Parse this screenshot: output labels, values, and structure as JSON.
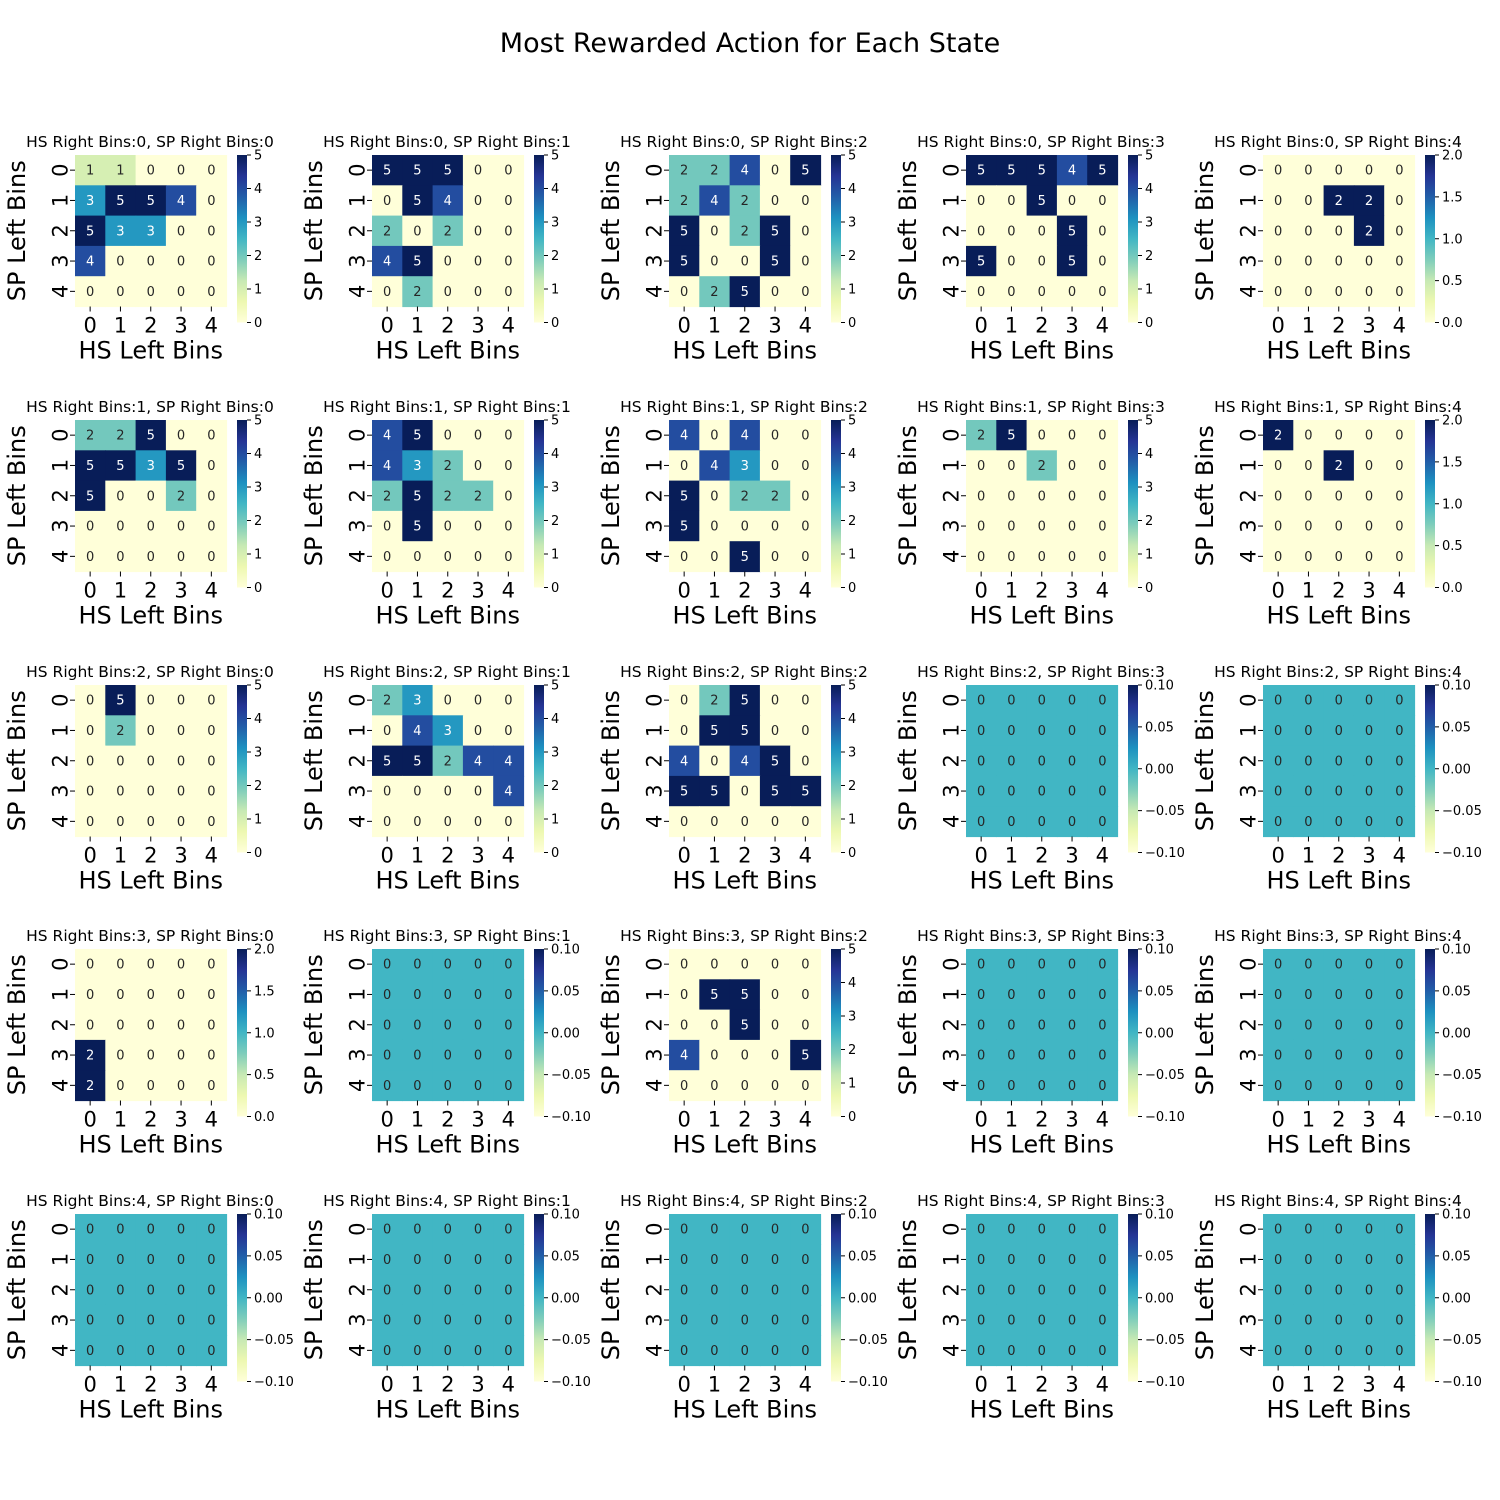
{
  "figure": {
    "title": "Most Rewarded Action for Each State"
  },
  "colormap": {
    "name": "YlGnBu",
    "stops": [
      "#ffffd9",
      "#edf8b1",
      "#c7e9b4",
      "#7fcdbb",
      "#41b6c4",
      "#1d91c0",
      "#225ea8",
      "#253494",
      "#081d58"
    ]
  },
  "chart_data": {
    "type": "heatmap",
    "title": "Most Rewarded Action for Each State",
    "xlabel": "HS Left Bins",
    "ylabel": "SP Left Bins",
    "x_ticks": [
      "0",
      "1",
      "2",
      "3",
      "4"
    ],
    "y_ticks": [
      "0",
      "1",
      "2",
      "3",
      "4"
    ],
    "grid": false,
    "legend": "colorbar-right-of-each-panel",
    "panels": [
      {
        "title": "HS Right Bins:0, SP Right Bins:0",
        "vmin": 0,
        "vmax": 5,
        "colorbar_ticks": [
          "0",
          "1",
          "2",
          "3",
          "4",
          "5"
        ],
        "values": [
          [
            1,
            1,
            0,
            0,
            0
          ],
          [
            3,
            5,
            5,
            4,
            0
          ],
          [
            5,
            3,
            3,
            0,
            0
          ],
          [
            4,
            0,
            0,
            0,
            0
          ],
          [
            0,
            0,
            0,
            0,
            0
          ]
        ]
      },
      {
        "title": "HS Right Bins:0, SP Right Bins:1",
        "vmin": 0,
        "vmax": 5,
        "colorbar_ticks": [
          "0",
          "1",
          "2",
          "3",
          "4",
          "5"
        ],
        "values": [
          [
            5,
            5,
            5,
            0,
            0
          ],
          [
            0,
            5,
            4,
            0,
            0
          ],
          [
            2,
            0,
            2,
            0,
            0
          ],
          [
            4,
            5,
            0,
            0,
            0
          ],
          [
            0,
            2,
            0,
            0,
            0
          ]
        ]
      },
      {
        "title": "HS Right Bins:0, SP Right Bins:2",
        "vmin": 0,
        "vmax": 5,
        "colorbar_ticks": [
          "0",
          "1",
          "2",
          "3",
          "4",
          "5"
        ],
        "values": [
          [
            2,
            2,
            4,
            0,
            5
          ],
          [
            2,
            4,
            2,
            0,
            0
          ],
          [
            5,
            0,
            2,
            5,
            0
          ],
          [
            5,
            0,
            0,
            5,
            0
          ],
          [
            0,
            2,
            5,
            0,
            0
          ]
        ]
      },
      {
        "title": "HS Right Bins:0, SP Right Bins:3",
        "vmin": 0,
        "vmax": 5,
        "colorbar_ticks": [
          "0",
          "1",
          "2",
          "3",
          "4",
          "5"
        ],
        "values": [
          [
            5,
            5,
            5,
            4,
            5
          ],
          [
            0,
            0,
            5,
            0,
            0
          ],
          [
            0,
            0,
            0,
            5,
            0
          ],
          [
            5,
            0,
            0,
            5,
            0
          ],
          [
            0,
            0,
            0,
            0,
            0
          ]
        ]
      },
      {
        "title": "HS Right Bins:0, SP Right Bins:4",
        "vmin": 0,
        "vmax": 2,
        "colorbar_ticks": [
          "0.0",
          "0.5",
          "1.0",
          "1.5",
          "2.0"
        ],
        "values": [
          [
            0,
            0,
            0,
            0,
            0
          ],
          [
            0,
            0,
            2,
            2,
            0
          ],
          [
            0,
            0,
            0,
            2,
            0
          ],
          [
            0,
            0,
            0,
            0,
            0
          ],
          [
            0,
            0,
            0,
            0,
            0
          ]
        ]
      },
      {
        "title": "HS Right Bins:1, SP Right Bins:0",
        "vmin": 0,
        "vmax": 5,
        "colorbar_ticks": [
          "0",
          "1",
          "2",
          "3",
          "4",
          "5"
        ],
        "values": [
          [
            2,
            2,
            5,
            0,
            0
          ],
          [
            5,
            5,
            3,
            5,
            0
          ],
          [
            5,
            0,
            0,
            2,
            0
          ],
          [
            0,
            0,
            0,
            0,
            0
          ],
          [
            0,
            0,
            0,
            0,
            0
          ]
        ]
      },
      {
        "title": "HS Right Bins:1, SP Right Bins:1",
        "vmin": 0,
        "vmax": 5,
        "colorbar_ticks": [
          "0",
          "1",
          "2",
          "3",
          "4",
          "5"
        ],
        "values": [
          [
            4,
            5,
            0,
            0,
            0
          ],
          [
            4,
            3,
            2,
            0,
            0
          ],
          [
            2,
            5,
            2,
            2,
            0
          ],
          [
            0,
            5,
            0,
            0,
            0
          ],
          [
            0,
            0,
            0,
            0,
            0
          ]
        ]
      },
      {
        "title": "HS Right Bins:1, SP Right Bins:2",
        "vmin": 0,
        "vmax": 5,
        "colorbar_ticks": [
          "0",
          "1",
          "2",
          "3",
          "4",
          "5"
        ],
        "values": [
          [
            4,
            0,
            4,
            0,
            0
          ],
          [
            0,
            4,
            3,
            0,
            0
          ],
          [
            5,
            0,
            2,
            2,
            0
          ],
          [
            5,
            0,
            0,
            0,
            0
          ],
          [
            0,
            0,
            5,
            0,
            0
          ]
        ]
      },
      {
        "title": "HS Right Bins:1, SP Right Bins:3",
        "vmin": 0,
        "vmax": 5,
        "colorbar_ticks": [
          "0",
          "1",
          "2",
          "3",
          "4",
          "5"
        ],
        "values": [
          [
            2,
            5,
            0,
            0,
            0
          ],
          [
            0,
            0,
            2,
            0,
            0
          ],
          [
            0,
            0,
            0,
            0,
            0
          ],
          [
            0,
            0,
            0,
            0,
            0
          ],
          [
            0,
            0,
            0,
            0,
            0
          ]
        ]
      },
      {
        "title": "HS Right Bins:1, SP Right Bins:4",
        "vmin": 0,
        "vmax": 2,
        "colorbar_ticks": [
          "0.0",
          "0.5",
          "1.0",
          "1.5",
          "2.0"
        ],
        "values": [
          [
            2,
            0,
            0,
            0,
            0
          ],
          [
            0,
            0,
            2,
            0,
            0
          ],
          [
            0,
            0,
            0,
            0,
            0
          ],
          [
            0,
            0,
            0,
            0,
            0
          ],
          [
            0,
            0,
            0,
            0,
            0
          ]
        ]
      },
      {
        "title": "HS Right Bins:2, SP Right Bins:0",
        "vmin": 0,
        "vmax": 5,
        "colorbar_ticks": [
          "0",
          "1",
          "2",
          "3",
          "4",
          "5"
        ],
        "values": [
          [
            0,
            5,
            0,
            0,
            0
          ],
          [
            0,
            2,
            0,
            0,
            0
          ],
          [
            0,
            0,
            0,
            0,
            0
          ],
          [
            0,
            0,
            0,
            0,
            0
          ],
          [
            0,
            0,
            0,
            0,
            0
          ]
        ]
      },
      {
        "title": "HS Right Bins:2, SP Right Bins:1",
        "vmin": 0,
        "vmax": 5,
        "colorbar_ticks": [
          "0",
          "1",
          "2",
          "3",
          "4",
          "5"
        ],
        "values": [
          [
            2,
            3,
            0,
            0,
            0
          ],
          [
            0,
            4,
            3,
            0,
            0
          ],
          [
            5,
            5,
            2,
            4,
            4
          ],
          [
            0,
            0,
            0,
            0,
            4
          ],
          [
            0,
            0,
            0,
            0,
            0
          ]
        ]
      },
      {
        "title": "HS Right Bins:2, SP Right Bins:2",
        "vmin": 0,
        "vmax": 5,
        "colorbar_ticks": [
          "0",
          "1",
          "2",
          "3",
          "4",
          "5"
        ],
        "values": [
          [
            0,
            2,
            5,
            0,
            0
          ],
          [
            0,
            5,
            5,
            0,
            0
          ],
          [
            4,
            0,
            4,
            5,
            0
          ],
          [
            5,
            5,
            0,
            5,
            5
          ],
          [
            0,
            0,
            0,
            0,
            0
          ]
        ]
      },
      {
        "title": "HS Right Bins:2, SP Right Bins:3",
        "vmin": -0.1,
        "vmax": 0.1,
        "colorbar_ticks": [
          "−0.10",
          "−0.05",
          "0.00",
          "0.05",
          "0.10"
        ],
        "values": [
          [
            0,
            0,
            0,
            0,
            0
          ],
          [
            0,
            0,
            0,
            0,
            0
          ],
          [
            0,
            0,
            0,
            0,
            0
          ],
          [
            0,
            0,
            0,
            0,
            0
          ],
          [
            0,
            0,
            0,
            0,
            0
          ]
        ]
      },
      {
        "title": "HS Right Bins:2, SP Right Bins:4",
        "vmin": -0.1,
        "vmax": 0.1,
        "colorbar_ticks": [
          "−0.10",
          "−0.05",
          "0.00",
          "0.05",
          "0.10"
        ],
        "values": [
          [
            0,
            0,
            0,
            0,
            0
          ],
          [
            0,
            0,
            0,
            0,
            0
          ],
          [
            0,
            0,
            0,
            0,
            0
          ],
          [
            0,
            0,
            0,
            0,
            0
          ],
          [
            0,
            0,
            0,
            0,
            0
          ]
        ]
      },
      {
        "title": "HS Right Bins:3, SP Right Bins:0",
        "vmin": 0,
        "vmax": 2,
        "colorbar_ticks": [
          "0.0",
          "0.5",
          "1.0",
          "1.5",
          "2.0"
        ],
        "values": [
          [
            0,
            0,
            0,
            0,
            0
          ],
          [
            0,
            0,
            0,
            0,
            0
          ],
          [
            0,
            0,
            0,
            0,
            0
          ],
          [
            2,
            0,
            0,
            0,
            0
          ],
          [
            2,
            0,
            0,
            0,
            0
          ]
        ]
      },
      {
        "title": "HS Right Bins:3, SP Right Bins:1",
        "vmin": -0.1,
        "vmax": 0.1,
        "colorbar_ticks": [
          "−0.10",
          "−0.05",
          "0.00",
          "0.05",
          "0.10"
        ],
        "values": [
          [
            0,
            0,
            0,
            0,
            0
          ],
          [
            0,
            0,
            0,
            0,
            0
          ],
          [
            0,
            0,
            0,
            0,
            0
          ],
          [
            0,
            0,
            0,
            0,
            0
          ],
          [
            0,
            0,
            0,
            0,
            0
          ]
        ]
      },
      {
        "title": "HS Right Bins:3, SP Right Bins:2",
        "vmin": 0,
        "vmax": 5,
        "colorbar_ticks": [
          "0",
          "1",
          "2",
          "3",
          "4",
          "5"
        ],
        "values": [
          [
            0,
            0,
            0,
            0,
            0
          ],
          [
            0,
            5,
            5,
            0,
            0
          ],
          [
            0,
            0,
            5,
            0,
            0
          ],
          [
            4,
            0,
            0,
            0,
            5
          ],
          [
            0,
            0,
            0,
            0,
            0
          ]
        ]
      },
      {
        "title": "HS Right Bins:3, SP Right Bins:3",
        "vmin": -0.1,
        "vmax": 0.1,
        "colorbar_ticks": [
          "−0.10",
          "−0.05",
          "0.00",
          "0.05",
          "0.10"
        ],
        "values": [
          [
            0,
            0,
            0,
            0,
            0
          ],
          [
            0,
            0,
            0,
            0,
            0
          ],
          [
            0,
            0,
            0,
            0,
            0
          ],
          [
            0,
            0,
            0,
            0,
            0
          ],
          [
            0,
            0,
            0,
            0,
            0
          ]
        ]
      },
      {
        "title": "HS Right Bins:3, SP Right Bins:4",
        "vmin": -0.1,
        "vmax": 0.1,
        "colorbar_ticks": [
          "−0.10",
          "−0.05",
          "0.00",
          "0.05",
          "0.10"
        ],
        "values": [
          [
            0,
            0,
            0,
            0,
            0
          ],
          [
            0,
            0,
            0,
            0,
            0
          ],
          [
            0,
            0,
            0,
            0,
            0
          ],
          [
            0,
            0,
            0,
            0,
            0
          ],
          [
            0,
            0,
            0,
            0,
            0
          ]
        ]
      },
      {
        "title": "HS Right Bins:4, SP Right Bins:0",
        "vmin": -0.1,
        "vmax": 0.1,
        "colorbar_ticks": [
          "−0.10",
          "−0.05",
          "0.00",
          "0.05",
          "0.10"
        ],
        "values": [
          [
            0,
            0,
            0,
            0,
            0
          ],
          [
            0,
            0,
            0,
            0,
            0
          ],
          [
            0,
            0,
            0,
            0,
            0
          ],
          [
            0,
            0,
            0,
            0,
            0
          ],
          [
            0,
            0,
            0,
            0,
            0
          ]
        ]
      },
      {
        "title": "HS Right Bins:4, SP Right Bins:1",
        "vmin": -0.1,
        "vmax": 0.1,
        "colorbar_ticks": [
          "−0.10",
          "−0.05",
          "0.00",
          "0.05",
          "0.10"
        ],
        "values": [
          [
            0,
            0,
            0,
            0,
            0
          ],
          [
            0,
            0,
            0,
            0,
            0
          ],
          [
            0,
            0,
            0,
            0,
            0
          ],
          [
            0,
            0,
            0,
            0,
            0
          ],
          [
            0,
            0,
            0,
            0,
            0
          ]
        ]
      },
      {
        "title": "HS Right Bins:4, SP Right Bins:2",
        "vmin": -0.1,
        "vmax": 0.1,
        "colorbar_ticks": [
          "−0.10",
          "−0.05",
          "0.00",
          "0.05",
          "0.10"
        ],
        "values": [
          [
            0,
            0,
            0,
            0,
            0
          ],
          [
            0,
            0,
            0,
            0,
            0
          ],
          [
            0,
            0,
            0,
            0,
            0
          ],
          [
            0,
            0,
            0,
            0,
            0
          ],
          [
            0,
            0,
            0,
            0,
            0
          ]
        ]
      },
      {
        "title": "HS Right Bins:4, SP Right Bins:3",
        "vmin": -0.1,
        "vmax": 0.1,
        "colorbar_ticks": [
          "−0.10",
          "−0.05",
          "0.00",
          "0.05",
          "0.10"
        ],
        "values": [
          [
            0,
            0,
            0,
            0,
            0
          ],
          [
            0,
            0,
            0,
            0,
            0
          ],
          [
            0,
            0,
            0,
            0,
            0
          ],
          [
            0,
            0,
            0,
            0,
            0
          ],
          [
            0,
            0,
            0,
            0,
            0
          ]
        ]
      },
      {
        "title": "HS Right Bins:4, SP Right Bins:4",
        "vmin": -0.1,
        "vmax": 0.1,
        "colorbar_ticks": [
          "−0.10",
          "−0.05",
          "0.00",
          "0.05",
          "0.10"
        ],
        "values": [
          [
            0,
            0,
            0,
            0,
            0
          ],
          [
            0,
            0,
            0,
            0,
            0
          ],
          [
            0,
            0,
            0,
            0,
            0
          ],
          [
            0,
            0,
            0,
            0,
            0
          ],
          [
            0,
            0,
            0,
            0,
            0
          ]
        ]
      }
    ]
  }
}
